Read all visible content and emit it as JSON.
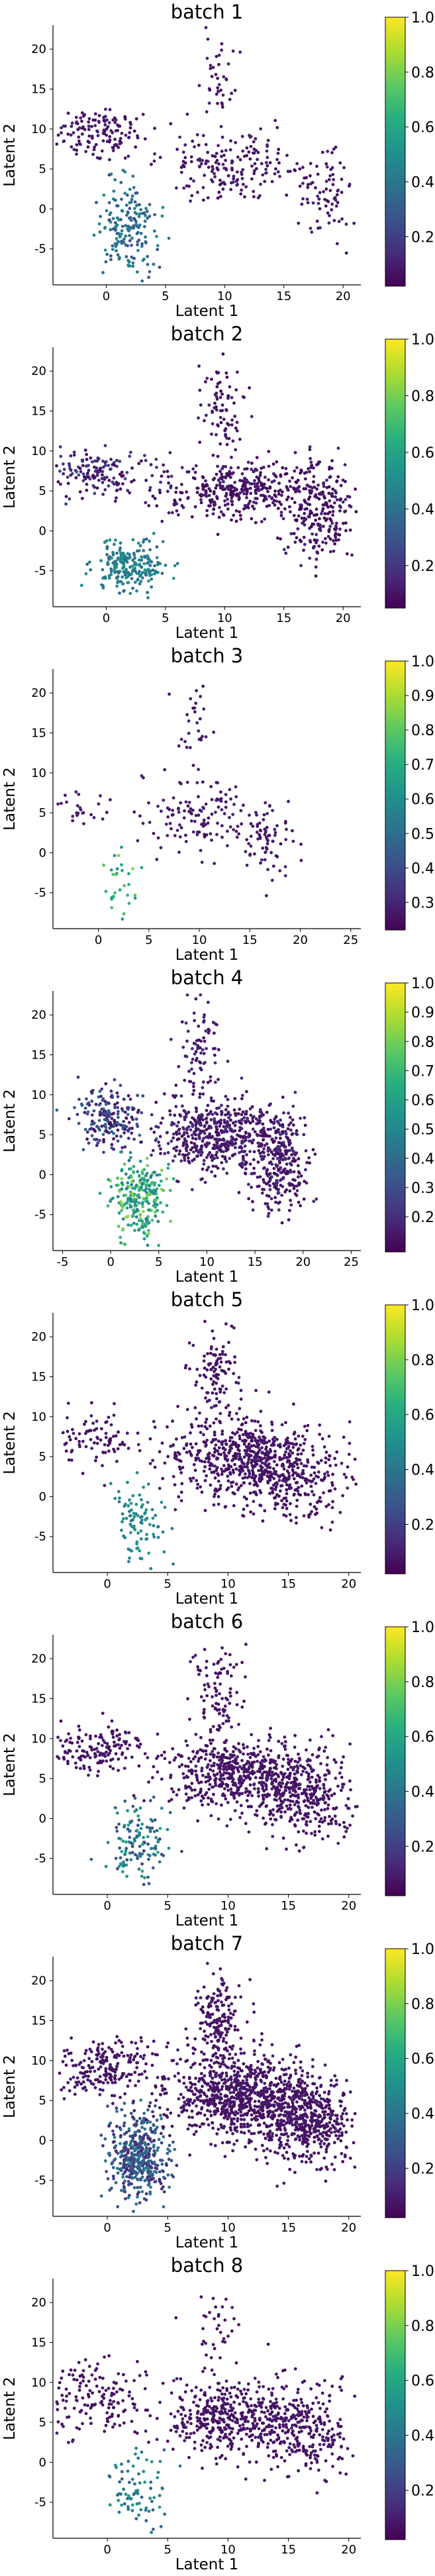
{
  "chart_data": [
    {
      "type": "scatter",
      "title": "batch 1",
      "xlabel": "Latent 1",
      "ylabel": "Latent 2",
      "xlim": [
        -4.5,
        21.5
      ],
      "ylim": [
        -9.5,
        23
      ],
      "xticks": [
        0,
        5,
        10,
        15,
        20
      ],
      "yticks": [
        -5,
        0,
        5,
        10,
        15,
        20
      ],
      "colorbar": {
        "colormap": "viridis",
        "range": [
          0.02,
          1.0
        ],
        "ticks": [
          0.2,
          0.4,
          0.6,
          0.8,
          1.0
        ],
        "tick_labels": [
          "0.2",
          "0.4",
          "0.6",
          "0.8",
          "1.0"
        ]
      },
      "grid": false,
      "clusters": [
        {
          "cx": -1,
          "cy": 9.5,
          "sx": 2.0,
          "sy": 1.5,
          "n": 150,
          "cmin": 0.05,
          "cmax": 0.12
        },
        {
          "cx": 2.0,
          "cy": -2.5,
          "sx": 1.2,
          "sy": 2.8,
          "n": 180,
          "cmin": 0.25,
          "cmax": 0.5
        },
        {
          "cx": 10.5,
          "cy": 5.5,
          "sx": 3.0,
          "sy": 2.2,
          "n": 180,
          "cmin": 0.05,
          "cmax": 0.12
        },
        {
          "cx": 18.5,
          "cy": 2.5,
          "sx": 1.2,
          "sy": 3.0,
          "n": 80,
          "cmin": 0.05,
          "cmax": 0.12
        },
        {
          "cx": 9.5,
          "cy": 16.5,
          "sx": 0.8,
          "sy": 3.0,
          "n": 40,
          "cmin": 0.05,
          "cmax": 0.12
        }
      ]
    },
    {
      "type": "scatter",
      "title": "batch 2",
      "xlabel": "Latent 1",
      "ylabel": "Latent 2",
      "xlim": [
        -4.5,
        21.5
      ],
      "ylim": [
        -9.5,
        23
      ],
      "xticks": [
        0,
        5,
        10,
        15,
        20
      ],
      "yticks": [
        -5,
        0,
        5,
        10,
        15,
        20
      ],
      "colorbar": {
        "colormap": "viridis",
        "range": [
          0.05,
          1.0
        ],
        "ticks": [
          0.2,
          0.4,
          0.6,
          0.8,
          1.0
        ],
        "tick_labels": [
          "0.2",
          "0.4",
          "0.6",
          "0.8",
          "1.0"
        ]
      },
      "grid": false,
      "clusters": [
        {
          "cx": -1,
          "cy": 7,
          "sx": 2.5,
          "sy": 1.3,
          "n": 160,
          "cmin": 0.05,
          "cmax": 0.25
        },
        {
          "cx": 2.0,
          "cy": -4.5,
          "sx": 1.5,
          "sy": 1.5,
          "n": 220,
          "cmin": 0.35,
          "cmax": 0.55
        },
        {
          "cx": 11,
          "cy": 5,
          "sx": 3.2,
          "sy": 1.8,
          "n": 350,
          "cmin": 0.05,
          "cmax": 0.15
        },
        {
          "cx": 18,
          "cy": 2.5,
          "sx": 1.5,
          "sy": 3.0,
          "n": 250,
          "cmin": 0.05,
          "cmax": 0.15
        },
        {
          "cx": 10,
          "cy": 15,
          "sx": 1.0,
          "sy": 3.0,
          "n": 80,
          "cmin": 0.05,
          "cmax": 0.15
        }
      ]
    },
    {
      "type": "scatter",
      "title": "batch 3",
      "xlabel": "Latent 1",
      "ylabel": "Latent 2",
      "xlim": [
        -4.5,
        26
      ],
      "ylim": [
        -9.5,
        23
      ],
      "xticks": [
        0,
        5,
        10,
        15,
        20,
        25
      ],
      "yticks": [
        -5,
        0,
        5,
        10,
        15,
        20
      ],
      "colorbar": {
        "colormap": "viridis",
        "range": [
          0.22,
          1.0
        ],
        "ticks": [
          0.3,
          0.4,
          0.5,
          0.6,
          0.7,
          0.8,
          0.9,
          1.0
        ],
        "tick_labels": [
          "0.3",
          "0.4",
          "0.5",
          "0.6",
          "0.7",
          "0.8",
          "0.9",
          "1.0"
        ]
      },
      "grid": false,
      "clusters": [
        {
          "cx": -2,
          "cy": 5,
          "sx": 1.5,
          "sy": 1.3,
          "n": 25,
          "cmin": 0.25,
          "cmax": 0.3
        },
        {
          "cx": 2.5,
          "cy": -3.5,
          "sx": 1.2,
          "sy": 2.2,
          "n": 30,
          "cmin": 0.6,
          "cmax": 0.85
        },
        {
          "cx": 10.5,
          "cy": 4.5,
          "sx": 3.0,
          "sy": 2.3,
          "n": 130,
          "cmin": 0.25,
          "cmax": 0.3
        },
        {
          "cx": 16.5,
          "cy": 1.0,
          "sx": 1.3,
          "sy": 2.5,
          "n": 70,
          "cmin": 0.25,
          "cmax": 0.3
        },
        {
          "cx": 9.5,
          "cy": 16,
          "sx": 1.0,
          "sy": 3.0,
          "n": 30,
          "cmin": 0.25,
          "cmax": 0.3
        }
      ]
    },
    {
      "type": "scatter",
      "title": "batch 4",
      "xlabel": "Latent 1",
      "ylabel": "Latent 2",
      "xlim": [
        -6,
        26
      ],
      "ylim": [
        -9.5,
        23
      ],
      "xticks": [
        -5,
        0,
        5,
        10,
        15,
        20,
        25
      ],
      "yticks": [
        -5,
        0,
        5,
        10,
        15,
        20
      ],
      "colorbar": {
        "colormap": "viridis",
        "range": [
          0.08,
          1.0
        ],
        "ticks": [
          0.2,
          0.3,
          0.4,
          0.5,
          0.6,
          0.7,
          0.8,
          0.9,
          1.0
        ],
        "tick_labels": [
          "0.2",
          "0.3",
          "0.4",
          "0.5",
          "0.6",
          "0.7",
          "0.8",
          "0.9",
          "1.0"
        ]
      },
      "grid": false,
      "clusters": [
        {
          "cx": 0,
          "cy": 7,
          "sx": 1.8,
          "sy": 2.0,
          "n": 200,
          "cmin": 0.1,
          "cmax": 0.4
        },
        {
          "cx": 3.0,
          "cy": -3.0,
          "sx": 1.4,
          "sy": 2.5,
          "n": 260,
          "cmin": 0.45,
          "cmax": 0.85
        },
        {
          "cx": 11,
          "cy": 5,
          "sx": 3.2,
          "sy": 2.0,
          "n": 500,
          "cmin": 0.1,
          "cmax": 0.2
        },
        {
          "cx": 17.5,
          "cy": 1.5,
          "sx": 1.5,
          "sy": 3.2,
          "n": 300,
          "cmin": 0.1,
          "cmax": 0.2
        },
        {
          "cx": 9.5,
          "cy": 15.5,
          "sx": 1.0,
          "sy": 3.0,
          "n": 80,
          "cmin": 0.1,
          "cmax": 0.2
        }
      ]
    },
    {
      "type": "scatter",
      "title": "batch 5",
      "xlabel": "Latent 1",
      "ylabel": "Latent 2",
      "xlim": [
        -4.5,
        21
      ],
      "ylim": [
        -9.5,
        23
      ],
      "xticks": [
        0,
        5,
        10,
        15,
        20
      ],
      "yticks": [
        -5,
        0,
        5,
        10,
        15,
        20
      ],
      "colorbar": {
        "colormap": "viridis",
        "range": [
          0.02,
          1.0
        ],
        "ticks": [
          0.2,
          0.4,
          0.6,
          0.8,
          1.0
        ],
        "tick_labels": [
          "0.2",
          "0.4",
          "0.6",
          "0.8",
          "1.0"
        ]
      },
      "grid": false,
      "clusters": [
        {
          "cx": -1,
          "cy": 7.5,
          "sx": 2.0,
          "sy": 1.8,
          "n": 90,
          "cmin": 0.05,
          "cmax": 0.1
        },
        {
          "cx": 2.5,
          "cy": -3.5,
          "sx": 1.2,
          "sy": 2.5,
          "n": 90,
          "cmin": 0.4,
          "cmax": 0.55
        },
        {
          "cx": 11.5,
          "cy": 5,
          "sx": 3.0,
          "sy": 2.5,
          "n": 600,
          "cmin": 0.05,
          "cmax": 0.1
        },
        {
          "cx": 16,
          "cy": 2.0,
          "sx": 2.0,
          "sy": 2.5,
          "n": 200,
          "cmin": 0.05,
          "cmax": 0.1
        },
        {
          "cx": 9,
          "cy": 15.5,
          "sx": 1.0,
          "sy": 3.0,
          "n": 100,
          "cmin": 0.05,
          "cmax": 0.1
        }
      ]
    },
    {
      "type": "scatter",
      "title": "batch 6",
      "xlabel": "Latent 1",
      "ylabel": "Latent 2",
      "xlim": [
        -4.5,
        21
      ],
      "ylim": [
        -9.5,
        23
      ],
      "xticks": [
        0,
        5,
        10,
        15,
        20
      ],
      "yticks": [
        -5,
        0,
        5,
        10,
        15,
        20
      ],
      "colorbar": {
        "colormap": "viridis",
        "range": [
          0.02,
          1.0
        ],
        "ticks": [
          0.2,
          0.4,
          0.6,
          0.8,
          1.0
        ],
        "tick_labels": [
          "0.2",
          "0.4",
          "0.6",
          "0.8",
          "1.0"
        ]
      },
      "grid": false,
      "clusters": [
        {
          "cx": -1,
          "cy": 8.5,
          "sx": 2.2,
          "sy": 1.6,
          "n": 160,
          "cmin": 0.05,
          "cmax": 0.1
        },
        {
          "cx": 2.5,
          "cy": -3.0,
          "sx": 1.2,
          "sy": 2.3,
          "n": 130,
          "cmin": 0.2,
          "cmax": 0.6
        },
        {
          "cx": 10.5,
          "cy": 5.5,
          "sx": 3.0,
          "sy": 2.2,
          "n": 500,
          "cmin": 0.05,
          "cmax": 0.1
        },
        {
          "cx": 16.5,
          "cy": 3.0,
          "sx": 2.0,
          "sy": 2.8,
          "n": 350,
          "cmin": 0.05,
          "cmax": 0.1
        },
        {
          "cx": 9,
          "cy": 15.5,
          "sx": 1.0,
          "sy": 3.0,
          "n": 100,
          "cmin": 0.05,
          "cmax": 0.1
        }
      ]
    },
    {
      "type": "scatter",
      "title": "batch 7",
      "xlabel": "Latent 1",
      "ylabel": "Latent 2",
      "xlim": [
        -4.5,
        21
      ],
      "ylim": [
        -9.5,
        23
      ],
      "xticks": [
        0,
        5,
        10,
        15,
        20
      ],
      "yticks": [
        -5,
        0,
        5,
        10,
        15,
        20
      ],
      "colorbar": {
        "colormap": "viridis",
        "range": [
          0.02,
          1.0
        ],
        "ticks": [
          0.2,
          0.4,
          0.6,
          0.8,
          1.0
        ],
        "tick_labels": [
          "0.2",
          "0.4",
          "0.6",
          "0.8",
          "1.0"
        ]
      },
      "grid": false,
      "clusters": [
        {
          "cx": 0,
          "cy": 9,
          "sx": 2.2,
          "sy": 1.8,
          "n": 220,
          "cmin": 0.05,
          "cmax": 0.1
        },
        {
          "cx": 2.5,
          "cy": -2.0,
          "sx": 1.2,
          "sy": 2.8,
          "n": 450,
          "cmin": 0.1,
          "cmax": 0.45
        },
        {
          "cx": 11,
          "cy": 5.5,
          "sx": 3.0,
          "sy": 2.5,
          "n": 800,
          "cmin": 0.05,
          "cmax": 0.1
        },
        {
          "cx": 16.5,
          "cy": 2.5,
          "sx": 2.2,
          "sy": 2.8,
          "n": 500,
          "cmin": 0.05,
          "cmax": 0.1
        },
        {
          "cx": 9,
          "cy": 15,
          "sx": 1.0,
          "sy": 3.0,
          "n": 180,
          "cmin": 0.05,
          "cmax": 0.1
        }
      ]
    },
    {
      "type": "scatter",
      "title": "batch 8",
      "xlabel": "Latent 1",
      "ylabel": "Latent 2",
      "xlim": [
        -4.5,
        21
      ],
      "ylim": [
        -9.5,
        23
      ],
      "xticks": [
        0,
        5,
        10,
        15,
        20
      ],
      "yticks": [
        -5,
        0,
        5,
        10,
        15,
        20
      ],
      "colorbar": {
        "colormap": "viridis",
        "range": [
          0.02,
          1.0
        ],
        "ticks": [
          0.2,
          0.4,
          0.6,
          0.8,
          1.0
        ],
        "tick_labels": [
          "0.2",
          "0.4",
          "0.6",
          "0.8",
          "1.0"
        ]
      },
      "grid": false,
      "clusters": [
        {
          "cx": -1,
          "cy": 8.0,
          "sx": 2.2,
          "sy": 2.2,
          "n": 150,
          "cmin": 0.05,
          "cmax": 0.1
        },
        {
          "cx": 2.5,
          "cy": -3.5,
          "sx": 1.2,
          "sy": 2.5,
          "n": 80,
          "cmin": 0.3,
          "cmax": 0.55
        },
        {
          "cx": 10.5,
          "cy": 5.5,
          "sx": 3.0,
          "sy": 2.3,
          "n": 450,
          "cmin": 0.05,
          "cmax": 0.1
        },
        {
          "cx": 16,
          "cy": 4.0,
          "sx": 2.0,
          "sy": 2.8,
          "n": 250,
          "cmin": 0.05,
          "cmax": 0.1
        },
        {
          "cx": 9,
          "cy": 16,
          "sx": 1.0,
          "sy": 3.0,
          "n": 40,
          "cmin": 0.05,
          "cmax": 0.1
        }
      ]
    }
  ]
}
